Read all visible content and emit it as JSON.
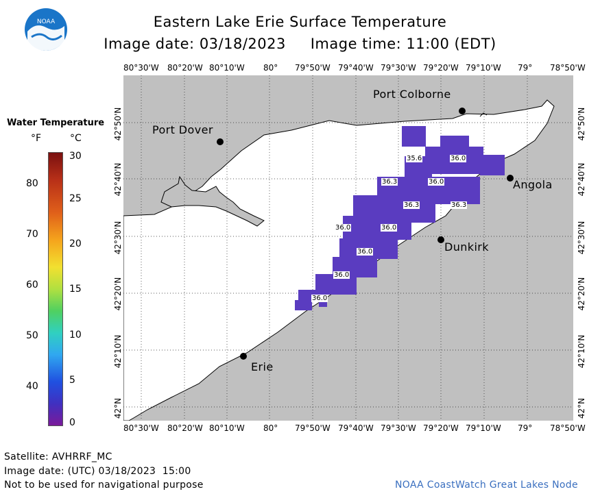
{
  "header": {
    "title": "Eastern Lake Erie Surface Temperature",
    "subtitle": "Image date: 03/18/2023     Image time: 11:00 (EDT)"
  },
  "longitude_ticks": [
    "80°30'W",
    "80°20'W",
    "80°10'W",
    "80°",
    "79°50'W",
    "79°40'W",
    "79°30'W",
    "79°20'W",
    "79°10'W",
    "79°",
    "78°50'W"
  ],
  "latitude_ticks": [
    "42°50'N",
    "42°40'N",
    "42°30'N",
    "42°20'N",
    "42°10'N",
    "42°N"
  ],
  "cities": [
    {
      "name": "Port Colborne"
    },
    {
      "name": "Port Dover"
    },
    {
      "name": "Angola"
    },
    {
      "name": "Dunkirk"
    },
    {
      "name": "Erie"
    }
  ],
  "temperature_labels": [
    "35.6",
    "36.0",
    "36.3",
    "36.0",
    "36.3",
    "36.3",
    "36.0",
    "36.0",
    "36.0",
    "36.0",
    "36.0"
  ],
  "legend": {
    "title": "Water Temperature",
    "unit_f": "°F",
    "unit_c": "°C",
    "f_ticks": [
      "80",
      "70",
      "60",
      "50",
      "40"
    ],
    "c_ticks": [
      "30",
      "25",
      "20",
      "15",
      "10",
      "5",
      "0"
    ]
  },
  "footer": {
    "satellite": "Satellite: AVHRRF_MC",
    "utc": "Image date: (UTC) 03/18/2023  15:00",
    "disclaimer": "Not to be used for navigational purpose",
    "credit": "NOAA CoastWatch Great Lakes Node"
  },
  "colors": {
    "land": "#c0c0c0",
    "water": "#ffffff",
    "sst_cold": "#5a3cc0",
    "credit_text": "#3a6fbf",
    "logo_blue": "#1a75c8"
  }
}
